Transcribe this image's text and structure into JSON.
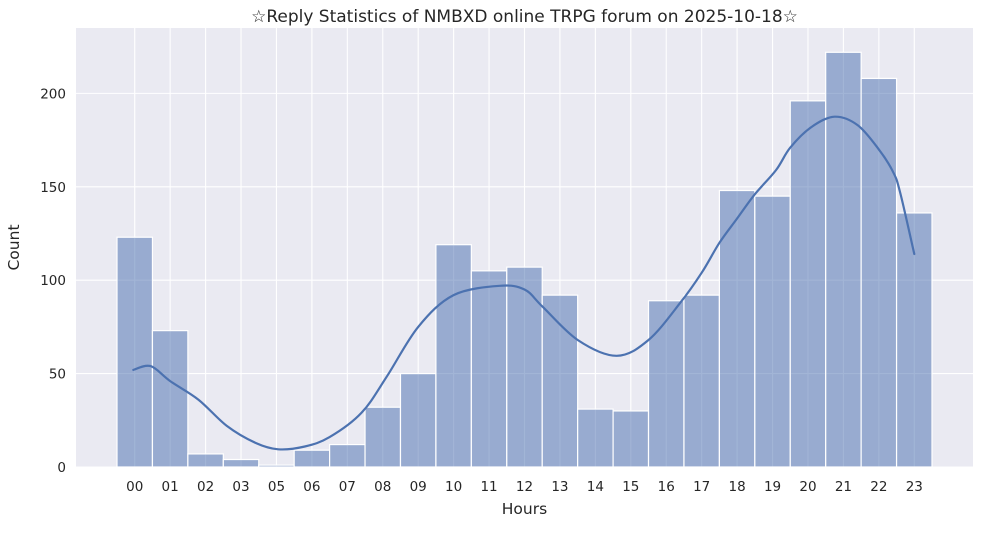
{
  "chart_data": {
    "type": "bar",
    "variant": "histogram-with-kde-curve",
    "title": "☆Reply Statistics of NMBXD online TRPG forum on 2025-10-18☆",
    "xlabel": "Hours",
    "ylabel": "Count",
    "categories": [
      "00",
      "01",
      "02",
      "03",
      "05",
      "06",
      "07",
      "08",
      "09",
      "10",
      "11",
      "12",
      "13",
      "14",
      "15",
      "16",
      "17",
      "18",
      "19",
      "20",
      "21",
      "22",
      "23"
    ],
    "values": [
      123,
      73,
      7,
      4,
      1,
      9,
      12,
      32,
      50,
      119,
      105,
      107,
      92,
      31,
      30,
      89,
      92,
      148,
      145,
      196,
      222,
      208,
      136
    ],
    "yticks": [
      0,
      50,
      100,
      150,
      200
    ],
    "ylim": [
      0,
      235
    ],
    "grid": true,
    "legend_position": "none",
    "kde_points_u_v": [
      [
        0.46,
        52
      ],
      [
        0.95,
        54
      ],
      [
        1.5,
        46
      ],
      [
        2.3,
        36
      ],
      [
        3.1,
        22
      ],
      [
        3.9,
        13
      ],
      [
        4.55,
        9.5
      ],
      [
        5.3,
        11
      ],
      [
        6.0,
        16
      ],
      [
        6.9,
        29
      ],
      [
        7.6,
        48
      ],
      [
        8.5,
        75
      ],
      [
        9.5,
        92
      ],
      [
        10.8,
        97
      ],
      [
        11.5,
        95
      ],
      [
        12.0,
        86
      ],
      [
        13.0,
        68
      ],
      [
        14.1,
        59.5
      ],
      [
        15.0,
        68
      ],
      [
        15.9,
        88
      ],
      [
        16.5,
        104
      ],
      [
        17.0,
        120
      ],
      [
        17.5,
        133
      ],
      [
        18.0,
        146
      ],
      [
        18.6,
        159
      ],
      [
        19.0,
        171
      ],
      [
        19.6,
        182
      ],
      [
        20.25,
        187.5
      ],
      [
        20.9,
        183
      ],
      [
        21.5,
        170
      ],
      [
        21.9,
        158
      ],
      [
        22.1,
        147
      ],
      [
        22.5,
        114
      ]
    ],
    "colors": {
      "bar_fill_base": "#4C72B0",
      "bar_fill_opacity": 0.52,
      "bar_edge": "#FFFFFF",
      "kde_line": "#4C72B0",
      "plot_background": "#EAEAF2",
      "gridline": "#FFFFFF",
      "text": "#262626"
    }
  }
}
